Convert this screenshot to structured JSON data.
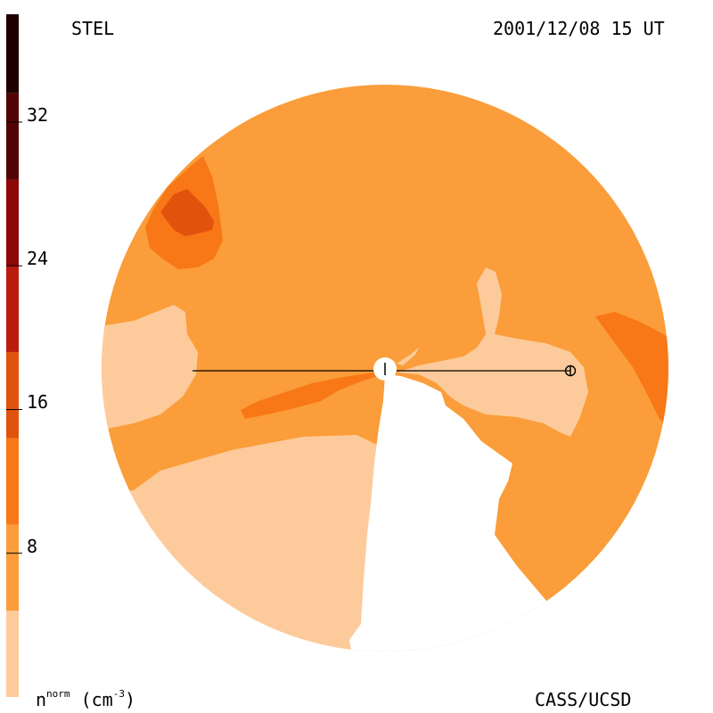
{
  "header": {
    "site": "STEL",
    "timestamp": "2001/12/08 15 UT"
  },
  "footer": {
    "credit": "CASS/UCSD",
    "units_base": "n",
    "units_super": "norm",
    "units_rest": " (cm",
    "units_exp": "-3",
    "units_close": ")"
  },
  "colorbar": {
    "min": 0,
    "max": 38,
    "levels": [
      {
        "from": 0,
        "to": 4.8,
        "color": "#FDCB9B"
      },
      {
        "from": 4.8,
        "to": 9.6,
        "color": "#FA9D3A"
      },
      {
        "from": 9.6,
        "to": 14.4,
        "color": "#F87716"
      },
      {
        "from": 14.4,
        "to": 19.2,
        "color": "#E1520C"
      },
      {
        "from": 19.2,
        "to": 24,
        "color": "#BB1B0E"
      },
      {
        "from": 24,
        "to": 28.8,
        "color": "#8F0707"
      },
      {
        "from": 28.8,
        "to": 33.6,
        "color": "#520404"
      },
      {
        "from": 33.6,
        "to": 38,
        "color": "#200000"
      }
    ],
    "ticks": [
      {
        "value": 8,
        "label": "8"
      },
      {
        "value": 16,
        "label": "16"
      },
      {
        "value": 24,
        "label": "24"
      },
      {
        "value": 32,
        "label": "32"
      }
    ]
  },
  "colors": {
    "level1": "#FDCB9B",
    "level2": "#FA9D3A",
    "level3": "#F87716",
    "level4": "#E1520C",
    "background": "#FFFFFF",
    "line": "#000000"
  },
  "markers": {
    "sun": "sun-symbol",
    "earth": "earth-symbol"
  }
}
